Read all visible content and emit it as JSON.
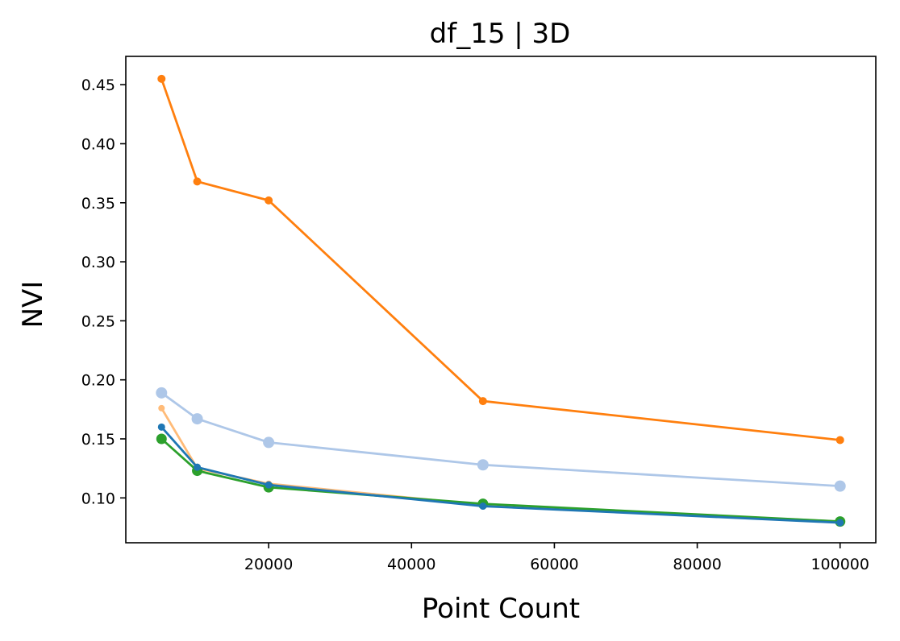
{
  "chart_data": {
    "type": "line",
    "title": "df_15 | 3D",
    "xlabel": "Point Count",
    "ylabel": "NVI",
    "xlim": [
      0,
      105000
    ],
    "ylim": [
      0.062,
      0.474
    ],
    "x": [
      5000,
      10000,
      20000,
      50000,
      100000
    ],
    "xticks": [
      20000,
      40000,
      60000,
      80000,
      100000
    ],
    "xtick_labels": [
      "20000",
      "40000",
      "60000",
      "80000",
      "100000"
    ],
    "yticks": [
      0.1,
      0.15,
      0.2,
      0.25,
      0.3,
      0.35,
      0.4,
      0.45
    ],
    "ytick_labels": [
      "0.10",
      "0.15",
      "0.20",
      "0.25",
      "0.30",
      "0.35",
      "0.40",
      "0.45"
    ],
    "grid": false,
    "series": [
      {
        "values": [
          0.455,
          0.368,
          0.352,
          0.182,
          0.149
        ],
        "color": "#ff7f0e",
        "marker_radius": 5
      },
      {
        "values": [
          0.189,
          0.167,
          0.147,
          0.128,
          0.11
        ],
        "color": "#aec7e8",
        "marker_radius": 7
      },
      {
        "values": [
          0.176,
          0.125,
          0.112,
          0.094,
          0.08
        ],
        "color": "#ffbb78",
        "marker_radius": 4
      },
      {
        "values": [
          0.15,
          0.123,
          0.109,
          0.095,
          0.08
        ],
        "color": "#2ca02c",
        "marker_radius": 6.5
      },
      {
        "values": [
          0.16,
          0.126,
          0.111,
          0.093,
          0.079
        ],
        "color": "#1f77b4",
        "marker_radius": 4.5
      }
    ]
  }
}
